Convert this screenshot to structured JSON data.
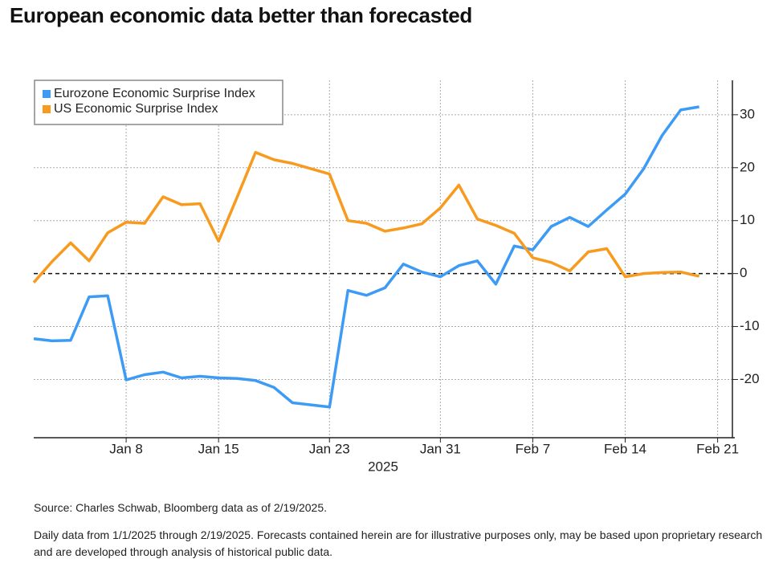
{
  "chart_data": {
    "type": "line",
    "title": "European economic data better than forecasted",
    "xlabel": "2025",
    "categories": [
      null,
      null,
      null,
      null,
      null,
      "Jan 8",
      null,
      null,
      null,
      null,
      "Jan 15",
      null,
      null,
      null,
      null,
      null,
      "Jan 23",
      null,
      null,
      null,
      null,
      null,
      "Jan 31",
      null,
      null,
      null,
      null,
      "Feb 7",
      null,
      null,
      null,
      null,
      "Feb 14",
      null,
      null,
      null,
      null,
      "Feb 21"
    ],
    "series": [
      {
        "name": "Eurozone Economic Surprise Index",
        "color": "#3d9bf5",
        "values": [
          -12.3,
          -12.7,
          -12.6,
          -4.4,
          -4.2,
          -20.1,
          -19.1,
          -18.6,
          -19.7,
          -19.4,
          -19.7,
          -19.8,
          -20.2,
          -21.5,
          -24.4,
          -24.8,
          -25.2,
          -3.2,
          -4.1,
          -2.7,
          1.8,
          0.3,
          -0.6,
          1.5,
          2.4,
          -2.0,
          5.2,
          4.5,
          8.9,
          10.6,
          8.9,
          12.0,
          15.0,
          19.8,
          26.1,
          30.9,
          31.5,
          null
        ]
      },
      {
        "name": "US Economic Surprise Index",
        "color": "#f79a1e",
        "values": [
          -1.7,
          2.3,
          5.8,
          2.4,
          7.7,
          9.7,
          9.5,
          14.5,
          13.0,
          13.2,
          6.1,
          14.4,
          22.9,
          21.5,
          20.8,
          19.8,
          18.8,
          10.0,
          9.5,
          8.0,
          8.6,
          9.4,
          12.4,
          16.7,
          10.3,
          9.1,
          7.6,
          3.0,
          2.1,
          0.5,
          4.1,
          4.7,
          -0.6,
          0,
          0.2,
          0.3,
          -0.5,
          null
        ]
      }
    ],
    "ylim": [
      -31,
      36.5
    ],
    "yticks": [
      -20,
      -10,
      0,
      10,
      20,
      30
    ],
    "grid": true,
    "legend": "upper left",
    "y_axis_side": "right"
  },
  "footer": {
    "source": "Source: Charles Schwab, Bloomberg data as of 2/19/2025.",
    "note": "Daily data from 1/1/2025 through 2/19/2025. Forecasts contained herein are for illustrative purposes only, may be based upon proprietary research and are developed through analysis of historical public data."
  }
}
